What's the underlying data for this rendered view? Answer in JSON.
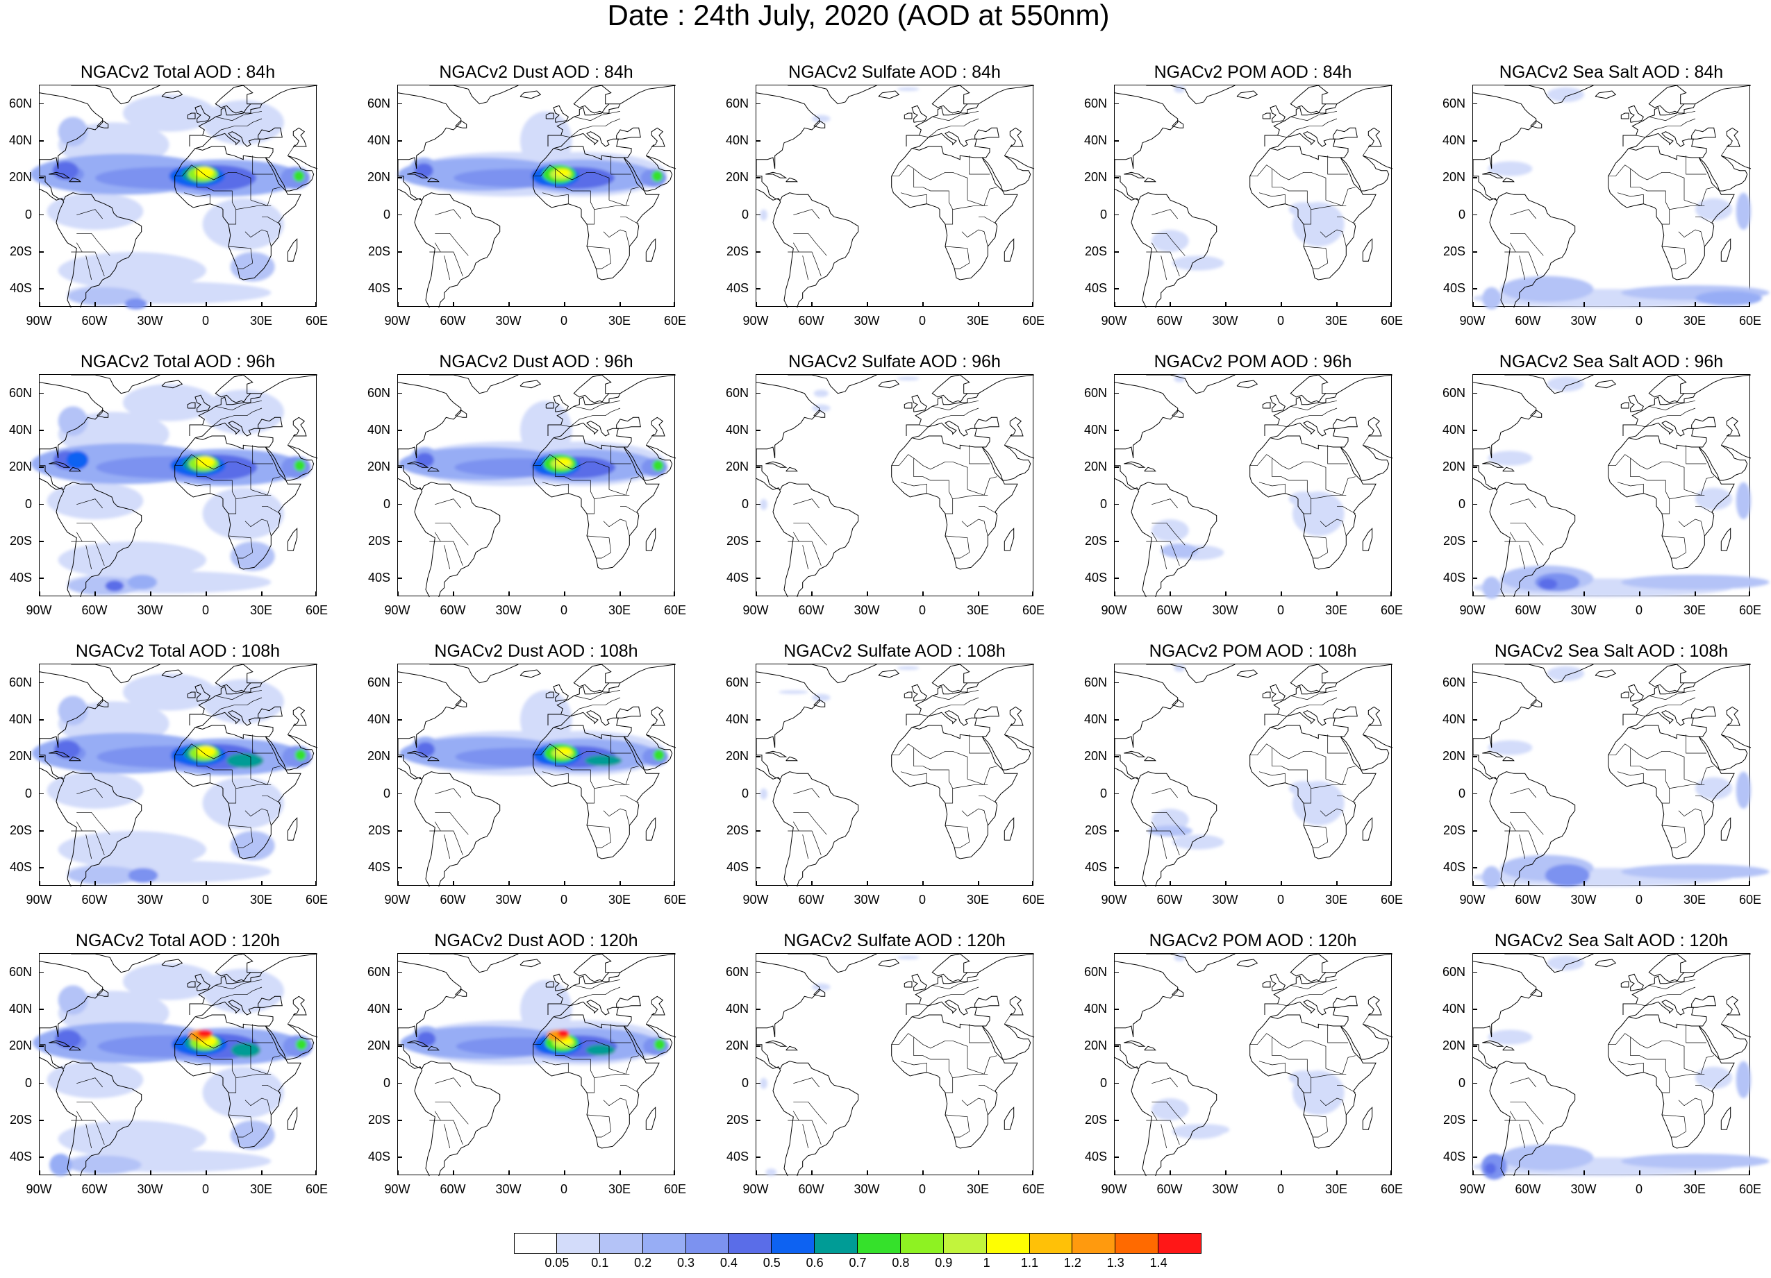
{
  "title": "Date : 24th July, 2020 (AOD at 550nm)",
  "species": [
    "Total",
    "Dust",
    "Sulfate",
    "POM",
    "Sea Salt"
  ],
  "forecast_hours": [
    "84h",
    "96h",
    "108h",
    "120h"
  ],
  "panel_titles": [
    [
      "NGACv2 Total AOD : 84h",
      "NGACv2 Dust AOD : 84h",
      "NGACv2 Sulfate AOD : 84h",
      "NGACv2 POM AOD : 84h",
      "NGACv2 Sea Salt AOD : 84h"
    ],
    [
      "NGACv2 Total AOD : 96h",
      "NGACv2 Dust AOD : 96h",
      "NGACv2 Sulfate AOD : 96h",
      "NGACv2 POM AOD : 96h",
      "NGACv2 Sea Salt AOD : 96h"
    ],
    [
      "NGACv2 Total AOD : 108h",
      "NGACv2 Dust AOD : 108h",
      "NGACv2 Sulfate AOD : 108h",
      "NGACv2 POM AOD : 108h",
      "NGACv2 Sea Salt AOD : 108h"
    ],
    [
      "NGACv2 Total AOD : 120h",
      "NGACv2 Dust AOD : 120h",
      "NGACv2 Sulfate AOD : 120h",
      "NGACv2 POM AOD : 120h",
      "NGACv2 Sea Salt  AOD : 120h"
    ]
  ],
  "lat_labels": [
    "60N",
    "40N",
    "20N",
    "0",
    "20S",
    "40S"
  ],
  "lon_labels": [
    "90W",
    "60W",
    "30W",
    "0",
    "30E",
    "60E"
  ],
  "colorbar": {
    "labels": [
      "0.05",
      "0.1",
      "0.2",
      "0.3",
      "0.4",
      "0.5",
      "0.6",
      "0.7",
      "0.8",
      "0.9",
      "1",
      "1.1",
      "1.2",
      "1.3",
      "1.4"
    ],
    "colors": [
      "#ffffff",
      "#d3dcfa",
      "#b4c3f7",
      "#97adf5",
      "#7c92f0",
      "#5a6de8",
      "#0d62f2",
      "#009c96",
      "#35e12b",
      "#8ef222",
      "#c2f43c",
      "#fefe02",
      "#ffc107",
      "#ff9a0e",
      "#ff6a00",
      "#ff1717"
    ]
  }
}
